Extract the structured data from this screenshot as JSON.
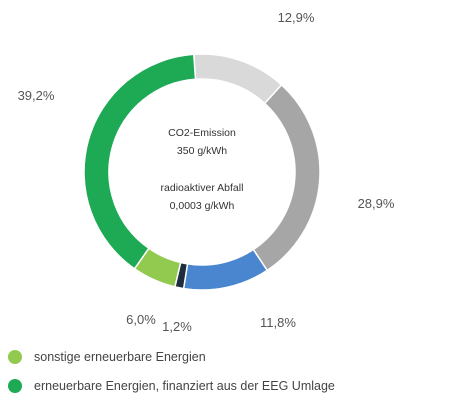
{
  "chart_data": {
    "type": "pie",
    "donut": true,
    "slices": [
      {
        "value": 12.9,
        "label": "12,9%",
        "color": "#d9d9d9"
      },
      {
        "value": 28.9,
        "label": "28,9%",
        "color": "#a6a6a6"
      },
      {
        "value": 11.8,
        "label": "11,8%",
        "color": "#4a86cf"
      },
      {
        "value": 1.2,
        "label": "1,2%",
        "color": "#1f2d3d"
      },
      {
        "value": 6.0,
        "label": "6,0%",
        "color": "#92c94f"
      },
      {
        "value": 39.2,
        "label": "39,2%",
        "color": "#1ea955"
      }
    ],
    "center_text": [
      "CO2-Emission",
      "350 g/kWh",
      "radioaktiver Abfall",
      "0,0003 g/kWh"
    ],
    "legend": [
      {
        "label": "sonstige erneuerbare Energien",
        "color": "#92c94f"
      },
      {
        "label": "erneuerbare Energien, finanziert aus der EEG Umlage",
        "color": "#1ea955"
      }
    ]
  }
}
